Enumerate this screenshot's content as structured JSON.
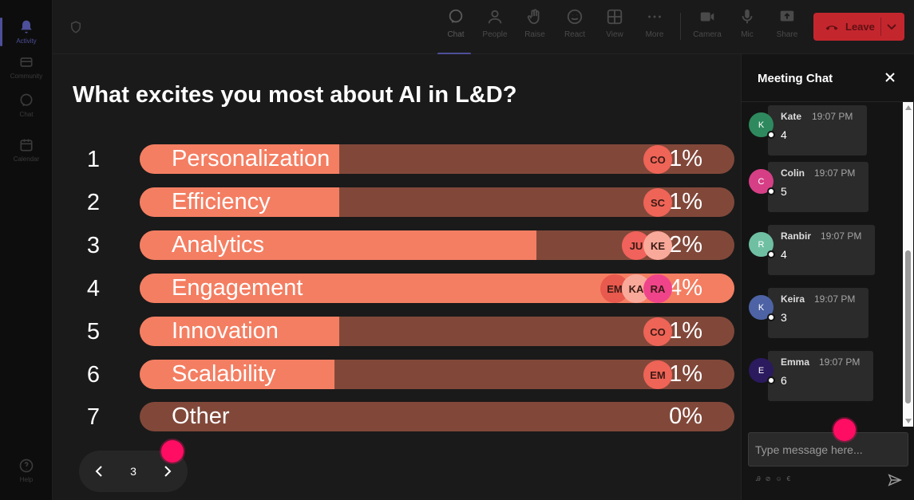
{
  "rail": {
    "items": [
      {
        "label": "Activity",
        "icon": "bell-icon"
      },
      {
        "label": "Community",
        "icon": "community-icon"
      },
      {
        "label": "Chat",
        "icon": "chat-icon"
      },
      {
        "label": "Calendar",
        "icon": "calendar-icon"
      }
    ],
    "help": {
      "label": "Help",
      "icon": "help-icon"
    }
  },
  "topbar": {
    "buttons": [
      {
        "label": "Chat",
        "icon": "chat-icon"
      },
      {
        "label": "People",
        "icon": "people-icon"
      },
      {
        "label": "Raise",
        "icon": "hand-icon"
      },
      {
        "label": "React",
        "icon": "smile-icon"
      },
      {
        "label": "View",
        "icon": "grid-icon"
      },
      {
        "label": "More",
        "icon": "more-icon"
      },
      {
        "label": "Camera",
        "icon": "camera-off-icon"
      },
      {
        "label": "Mic",
        "icon": "mic-icon"
      },
      {
        "label": "Share",
        "icon": "share-icon"
      }
    ],
    "leave_label": "Leave"
  },
  "poll": {
    "question": "What excites you most about AI in L&D?",
    "options": [
      {
        "num": "1",
        "label": "Personalization",
        "pct": "11%",
        "fill": 0.335,
        "voters": [
          {
            "initials": "CO",
            "color": "#ee6457"
          }
        ]
      },
      {
        "num": "2",
        "label": "Efficiency",
        "pct": "11%",
        "fill": 0.335,
        "voters": [
          {
            "initials": "SC",
            "color": "#ee6457"
          }
        ]
      },
      {
        "num": "3",
        "label": "Analytics",
        "pct": "22%",
        "fill": 0.667,
        "voters": [
          {
            "initials": "JU",
            "color": "#f0625b"
          },
          {
            "initials": "KE",
            "color": "#f9a99a"
          }
        ]
      },
      {
        "num": "4",
        "label": "Engagement",
        "pct": "34%",
        "fill": 1.0,
        "voters": [
          {
            "initials": "EM",
            "color": "#e8594e"
          },
          {
            "initials": "KA",
            "color": "#f9a99a"
          },
          {
            "initials": "RA",
            "color": "#f0448a"
          }
        ]
      },
      {
        "num": "5",
        "label": "Innovation",
        "pct": "11%",
        "fill": 0.335,
        "voters": [
          {
            "initials": "CO",
            "color": "#ee6457"
          }
        ]
      },
      {
        "num": "6",
        "label": "Scalability",
        "pct": "11%",
        "fill": 0.328,
        "voters": [
          {
            "initials": "EM",
            "color": "#ee6457"
          }
        ]
      },
      {
        "num": "7",
        "label": "Other",
        "pct": "0%",
        "fill": 0,
        "voters": []
      }
    ],
    "colors": {
      "fill": "#f47e62",
      "track": "#81483a"
    }
  },
  "pager": {
    "page": "3"
  },
  "chat": {
    "title": "Meeting Chat",
    "messages": [
      {
        "initial": "K",
        "name": "Kate",
        "time": "19:07 PM",
        "text": "4",
        "color": "#2e8a5e"
      },
      {
        "initial": "C",
        "name": "Colin",
        "time": "19:07 PM",
        "text": "5",
        "color": "#d63f86"
      },
      {
        "initial": "R",
        "name": "Ranbir",
        "time": "19:07 PM",
        "text": "4",
        "color": "#6fbfa3"
      },
      {
        "initial": "K",
        "name": "Keira",
        "time": "19:07 PM",
        "text": "3",
        "color": "#4d63a5"
      },
      {
        "initial": "E",
        "name": "Emma",
        "time": "19:07 PM",
        "text": "6",
        "color": "#2b1a5e"
      }
    ],
    "compose_placeholder": "Type message here..."
  }
}
